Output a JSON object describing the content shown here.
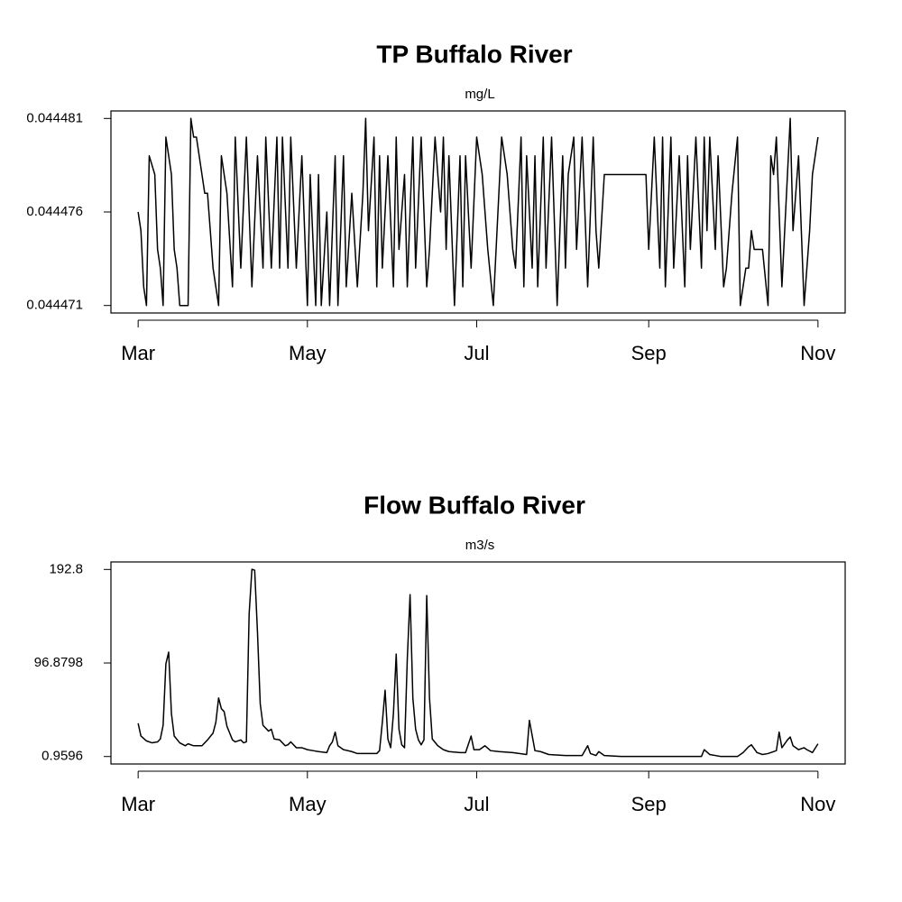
{
  "chart_data": [
    {
      "type": "line",
      "title": "TP Buffalo River",
      "subtitle": "mg/L",
      "color": "#000000",
      "xlim": [
        -9.8,
        254.8
      ],
      "ylim": [
        0.0444706,
        0.0444814
      ],
      "xticks": [
        {
          "value": 0,
          "label": "Mar"
        },
        {
          "value": 61,
          "label": "May"
        },
        {
          "value": 122,
          "label": "Jul"
        },
        {
          "value": 184,
          "label": "Sep"
        },
        {
          "value": 245,
          "label": "Nov"
        }
      ],
      "yticks": [
        0.044471,
        0.044476,
        0.044481
      ],
      "x": [
        0,
        1,
        2,
        3,
        4,
        6,
        7,
        8,
        9,
        10,
        11,
        12,
        13,
        14,
        15,
        18,
        19,
        20,
        21,
        24,
        25,
        27,
        29,
        30,
        32,
        34,
        35,
        37,
        39,
        41,
        43,
        45,
        46,
        48,
        50,
        51,
        52,
        54,
        55,
        57,
        59,
        61,
        62,
        64,
        65,
        66,
        68,
        69,
        71,
        72,
        74,
        75,
        77,
        79,
        81,
        82,
        83,
        85,
        86,
        87,
        88,
        90,
        92,
        93,
        94,
        96,
        97,
        99,
        100,
        102,
        104,
        105,
        107,
        109,
        110,
        111,
        112,
        114,
        116,
        117,
        118,
        120,
        122,
        124,
        126,
        128,
        131,
        133,
        134,
        135,
        136,
        138,
        139,
        140,
        142,
        143,
        144,
        146,
        147,
        149,
        151,
        153,
        154,
        155,
        157,
        158,
        160,
        162,
        164,
        165,
        166,
        168,
        183,
        184,
        186,
        188,
        189,
        190,
        192,
        193,
        195,
        197,
        198,
        199,
        201,
        203,
        204,
        205,
        206,
        208,
        209,
        211,
        212,
        214,
        216,
        217,
        219,
        220,
        221,
        222,
        225,
        227,
        228,
        229,
        230,
        232,
        233,
        235,
        236,
        238,
        240,
        242,
        243,
        245
      ],
      "values": [
        0.044476,
        0.044475,
        0.044472,
        0.044471,
        0.044479,
        0.044478,
        0.044474,
        0.044473,
        0.044471,
        0.04448,
        0.044479,
        0.044478,
        0.044474,
        0.044473,
        0.044471,
        0.044471,
        0.044481,
        0.04448,
        0.04448,
        0.044477,
        0.044477,
        0.044473,
        0.044471,
        0.044479,
        0.044477,
        0.044472,
        0.04448,
        0.044473,
        0.04448,
        0.044472,
        0.044479,
        0.044473,
        0.04448,
        0.044473,
        0.04448,
        0.044473,
        0.04448,
        0.044473,
        0.04448,
        0.044473,
        0.044479,
        0.044471,
        0.044478,
        0.044471,
        0.044478,
        0.044471,
        0.044476,
        0.044471,
        0.044479,
        0.044471,
        0.044479,
        0.044472,
        0.044477,
        0.044472,
        0.044477,
        0.044481,
        0.044475,
        0.04448,
        0.044472,
        0.044479,
        0.044473,
        0.044479,
        0.044472,
        0.04448,
        0.044474,
        0.044478,
        0.044472,
        0.04448,
        0.044473,
        0.04448,
        0.044472,
        0.044474,
        0.04448,
        0.044476,
        0.04448,
        0.044474,
        0.044479,
        0.044471,
        0.044479,
        0.044472,
        0.044479,
        0.044473,
        0.04448,
        0.044478,
        0.044474,
        0.044471,
        0.04448,
        0.044478,
        0.044476,
        0.044474,
        0.044473,
        0.04448,
        0.044472,
        0.044479,
        0.044473,
        0.044479,
        0.044472,
        0.04448,
        0.044473,
        0.04448,
        0.044471,
        0.044479,
        0.044473,
        0.044478,
        0.04448,
        0.044474,
        0.04448,
        0.044472,
        0.04448,
        0.044475,
        0.044473,
        0.044478,
        0.044478,
        0.044474,
        0.04448,
        0.044473,
        0.04448,
        0.044472,
        0.04448,
        0.044473,
        0.044479,
        0.044472,
        0.044479,
        0.044474,
        0.04448,
        0.044473,
        0.04448,
        0.044475,
        0.04448,
        0.044474,
        0.044479,
        0.044472,
        0.044473,
        0.044477,
        0.04448,
        0.044471,
        0.044473,
        0.044473,
        0.044475,
        0.044474,
        0.044474,
        0.044471,
        0.044479,
        0.044478,
        0.04448,
        0.044472,
        0.044475,
        0.044481,
        0.044475,
        0.044479,
        0.044471,
        0.044475,
        0.044478,
        0.04448
      ]
    },
    {
      "type": "line",
      "title": "Flow Buffalo River",
      "subtitle": "m3/s",
      "color": "#000000",
      "xlim": [
        -9.8,
        254.8
      ],
      "ylim": [
        -6.7,
        200.5
      ],
      "xticks": [
        {
          "value": 0,
          "label": "Mar"
        },
        {
          "value": 61,
          "label": "May"
        },
        {
          "value": 122,
          "label": "Jul"
        },
        {
          "value": 184,
          "label": "Sep"
        },
        {
          "value": 245,
          "label": "Nov"
        }
      ],
      "yticks": [
        0.9596,
        96.8798,
        192.8
      ],
      "x": [
        0,
        1,
        3,
        5,
        7,
        8,
        9,
        10,
        11,
        12,
        13,
        15,
        17,
        18,
        20,
        23,
        25,
        27,
        28,
        29,
        30,
        31,
        32,
        34,
        35,
        37,
        38,
        39,
        40,
        41,
        42,
        43,
        44,
        45,
        47,
        48,
        49,
        51,
        53,
        54,
        55,
        57,
        59,
        61,
        63,
        65,
        68,
        69,
        70,
        71,
        72,
        74,
        77,
        79,
        83,
        86,
        87,
        88,
        89,
        90,
        91,
        92,
        93,
        94,
        95,
        96,
        97,
        98,
        99,
        100,
        101,
        102,
        103,
        104,
        105,
        106,
        108,
        110,
        112,
        116,
        118,
        120,
        121,
        123,
        125,
        127,
        130,
        135,
        140,
        141,
        143,
        145,
        148,
        154,
        160,
        162,
        163,
        165,
        166,
        168,
        174,
        180,
        187,
        197,
        203,
        204,
        206,
        210,
        216,
        218,
        220,
        221,
        223,
        225,
        227,
        230,
        231,
        232,
        234,
        235,
        236,
        238,
        240,
        241,
        243,
        245
      ],
      "values": [
        35,
        22,
        17,
        15,
        16,
        19,
        33,
        96,
        108,
        45,
        22,
        15,
        12,
        14,
        12,
        12,
        18,
        25,
        36,
        61,
        50,
        47,
        32,
        18,
        16,
        18,
        15,
        16,
        147,
        193,
        192,
        129,
        55,
        33,
        27,
        29,
        19,
        18,
        12,
        13,
        16,
        10,
        10,
        8,
        7,
        6,
        5,
        12,
        16,
        26,
        12,
        8,
        6,
        4,
        4,
        4,
        7,
        36,
        69,
        19,
        10,
        45,
        106,
        29,
        13,
        10,
        101,
        167,
        61,
        29,
        18,
        13,
        18,
        166,
        61,
        19,
        12,
        8,
        6,
        5,
        5,
        22,
        8,
        8,
        12,
        7,
        6,
        5,
        3,
        38,
        7,
        6,
        3,
        2,
        2,
        12,
        4,
        2,
        6,
        2,
        1,
        1,
        1,
        1,
        1,
        8,
        3,
        1,
        1,
        5,
        11,
        13,
        5,
        3,
        4,
        7,
        26,
        10,
        18,
        21,
        12,
        8,
        10,
        8,
        5,
        14
      ]
    }
  ]
}
